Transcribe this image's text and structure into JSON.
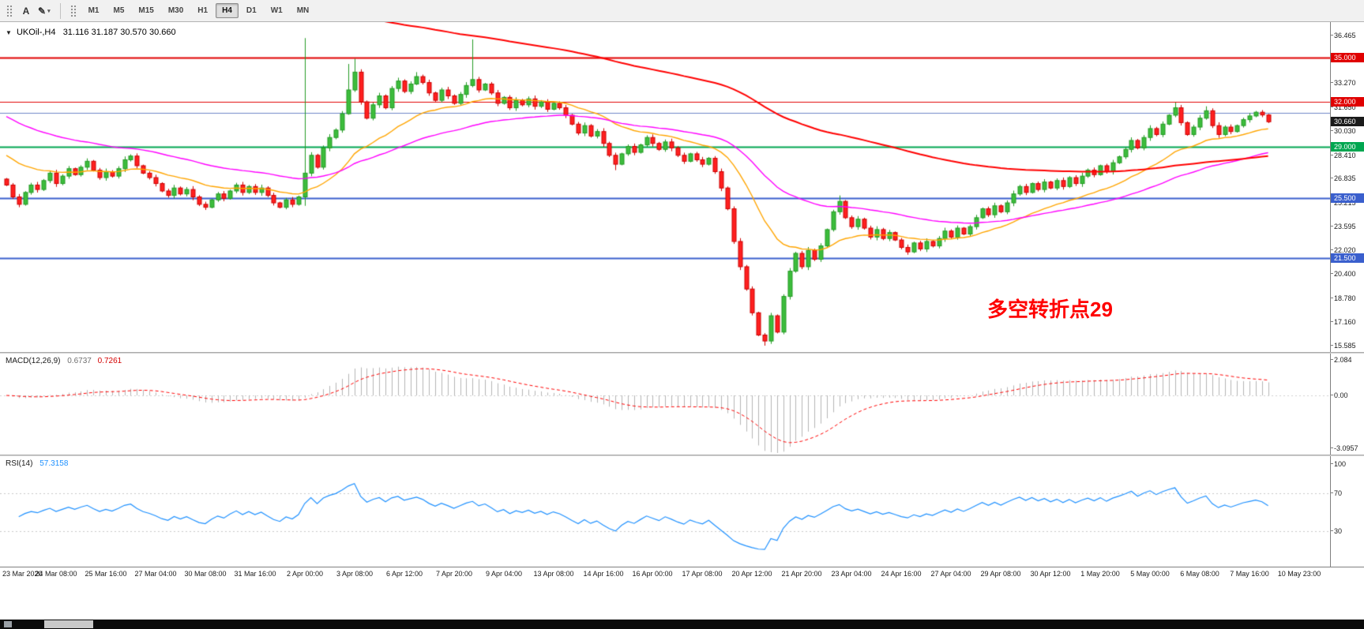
{
  "toolbar": {
    "tools": [
      {
        "name": "text-tool",
        "label": "A",
        "caret": false
      },
      {
        "name": "shapes-tool",
        "label": "✎",
        "caret": true
      }
    ],
    "timeframes": [
      "M1",
      "M5",
      "M15",
      "M30",
      "H1",
      "H4",
      "D1",
      "W1",
      "MN"
    ],
    "active_timeframe": "H4"
  },
  "chart_title": {
    "symbol_period": "UKOil-,H4",
    "ohlc": "31.116 31.187 30.570 30.660"
  },
  "annotation": {
    "text": "多空转折点29",
    "color": "#ff0000"
  },
  "y_axis": {
    "max": 36.465,
    "min": 15.585,
    "ticks": [
      "36.465",
      "33.270",
      "31.650",
      "30.030",
      "28.410",
      "26.835",
      "25.215",
      "23.595",
      "22.020",
      "20.400",
      "18.780",
      "17.160",
      "15.585"
    ]
  },
  "x_axis": {
    "labels": [
      "23 Mar 2020",
      "24 Mar 08:00",
      "25 Mar 16:00",
      "27 Mar 04:00",
      "30 Mar 08:00",
      "31 Mar 16:00",
      "2 Apr 00:00",
      "3 Apr 08:00",
      "6 Apr 12:00",
      "7 Apr 20:00",
      "9 Apr 04:00",
      "13 Apr 08:00",
      "14 Apr 16:00",
      "16 Apr 00:00",
      "17 Apr 08:00",
      "20 Apr 12:00",
      "21 Apr 20:00",
      "23 Apr 04:00",
      "24 Apr 16:00",
      "27 Apr 04:00",
      "29 Apr 08:00",
      "30 Apr 12:00",
      "1 May 20:00",
      "5 May 00:00",
      "6 May 08:00",
      "7 May 16:00",
      "10 May 23:00"
    ]
  },
  "macd": {
    "name": "MACD(12,26,9)",
    "value_main": "0.6737",
    "value_signal": "0.7261",
    "max": 2.084,
    "min": -3.0957,
    "ticks": [
      "2.084",
      "0.00",
      "-3.0957"
    ]
  },
  "rsi": {
    "name": "RSI(14)",
    "value": "57.3158",
    "max": 100,
    "min": 0,
    "ticks": [
      "100",
      "70",
      "30"
    ],
    "levels": [
      70,
      30
    ]
  },
  "chart_data": {
    "type": "candlestick",
    "title": "UKOil-,H4",
    "symbol": "UKOil-",
    "period": "H4",
    "first_open": 26.8,
    "closes": [
      26.4,
      25.6,
      25.1,
      25.9,
      26.4,
      26.1,
      26.7,
      27.2,
      26.5,
      27.0,
      27.5,
      27.1,
      27.6,
      28.0,
      27.4,
      26.9,
      27.3,
      27.0,
      27.5,
      28.1,
      28.35,
      27.7,
      27.2,
      26.9,
      26.5,
      26.0,
      25.7,
      26.2,
      25.8,
      26.1,
      25.6,
      25.1,
      24.9,
      25.4,
      25.8,
      25.5,
      26.0,
      26.4,
      25.9,
      26.3,
      25.9,
      26.2,
      25.7,
      25.2,
      24.9,
      25.4,
      25.1,
      25.6,
      27.2,
      28.4,
      27.6,
      28.9,
      29.6,
      30.1,
      31.2,
      32.8,
      34.0,
      32.0,
      30.9,
      31.8,
      32.4,
      31.6,
      32.9,
      33.4,
      32.7,
      33.2,
      33.7,
      33.3,
      32.6,
      32.1,
      32.8,
      32.4,
      31.9,
      32.5,
      33.1,
      33.5,
      32.8,
      33.2,
      32.6,
      31.9,
      32.3,
      31.6,
      32.1,
      31.8,
      32.2,
      31.7,
      32.0,
      31.5,
      31.9,
      31.6,
      31.1,
      30.5,
      29.9,
      30.4,
      29.7,
      30.0,
      29.2,
      28.4,
      27.8,
      28.5,
      29.0,
      28.6,
      29.1,
      29.6,
      29.2,
      28.8,
      29.3,
      28.9,
      28.4,
      28.0,
      28.5,
      28.1,
      27.8,
      28.2,
      27.3,
      26.2,
      24.8,
      22.6,
      20.9,
      19.4,
      17.8,
      16.3,
      15.9,
      17.6,
      16.5,
      18.9,
      20.6,
      21.8,
      20.9,
      22.0,
      21.4,
      22.3,
      23.4,
      24.6,
      25.3,
      24.2,
      23.6,
      24.1,
      23.5,
      22.9,
      23.4,
      22.8,
      23.2,
      22.7,
      22.2,
      21.9,
      22.5,
      22.1,
      22.6,
      22.3,
      22.8,
      23.3,
      22.9,
      23.5,
      23.1,
      23.6,
      24.2,
      24.8,
      24.4,
      25.0,
      24.6,
      25.2,
      25.8,
      26.3,
      25.9,
      26.5,
      26.1,
      26.6,
      26.2,
      26.7,
      26.3,
      26.9,
      26.5,
      27.0,
      27.4,
      27.1,
      27.7,
      27.3,
      27.9,
      28.3,
      28.8,
      29.4,
      28.9,
      29.6,
      30.2,
      29.8,
      30.5,
      31.1,
      31.6,
      30.6,
      29.8,
      30.3,
      30.9,
      31.4,
      30.4,
      29.8,
      30.3,
      30.0,
      30.4,
      30.8,
      31.05,
      31.3,
      31.116,
      30.66
    ],
    "wick_overrides": {
      "48": [
        36.29,
        25.0
      ],
      "55": [
        34.55,
        null
      ],
      "56": [
        34.9,
        null
      ],
      "66": [
        34.0,
        null
      ],
      "75": [
        36.2,
        null
      ],
      "98": [
        null,
        27.4
      ],
      "122": [
        null,
        15.585
      ],
      "134": [
        25.7,
        null
      ],
      "188": [
        31.95,
        null
      ],
      "193": [
        31.7,
        null
      ],
      "203": [
        31.187,
        30.57
      ]
    },
    "levels": [
      {
        "value": 35.0,
        "label": "35.000",
        "color": "#e00000",
        "width": 2
      },
      {
        "value": 32.0,
        "label": "32.000",
        "color": "#e00000",
        "width": 1
      },
      {
        "value": 31.25,
        "label": "",
        "color": "#6f86c9",
        "width": 1
      },
      {
        "value": 30.66,
        "label": "30.660",
        "color": "#1a1a1a",
        "width": 0
      },
      {
        "value": 29.0,
        "label": "29.000",
        "color": "#00a650",
        "width": 2
      },
      {
        "value": 25.5,
        "label": "25.500",
        "color": "#3a5fcd",
        "width": 2
      },
      {
        "value": 21.5,
        "label": "21.500",
        "color": "#3a5fcd",
        "width": 2
      }
    ],
    "moving_averages": [
      {
        "name": "ma-long-red",
        "period": 120,
        "seed": 55.0,
        "color": "#ff0000",
        "width": 2
      },
      {
        "name": "ma-medium-magenta",
        "period": 50,
        "seed": 31.2,
        "color": "#ff00ff",
        "width": 1.4
      },
      {
        "name": "ma-fast-orange",
        "period": 21,
        "seed": 28.6,
        "color": "#ffa500",
        "width": 1.4
      }
    ],
    "style": {
      "up_fill": "#3dbd3d",
      "up_stroke": "#229a22",
      "down_fill": "#ff2020",
      "down_stroke": "#cc0000",
      "macd_hist": "#b4b4b4",
      "macd_signal": "#ff0000",
      "rsi_line": "#1e90ff",
      "level_dotted": "#c8c8c8"
    }
  }
}
